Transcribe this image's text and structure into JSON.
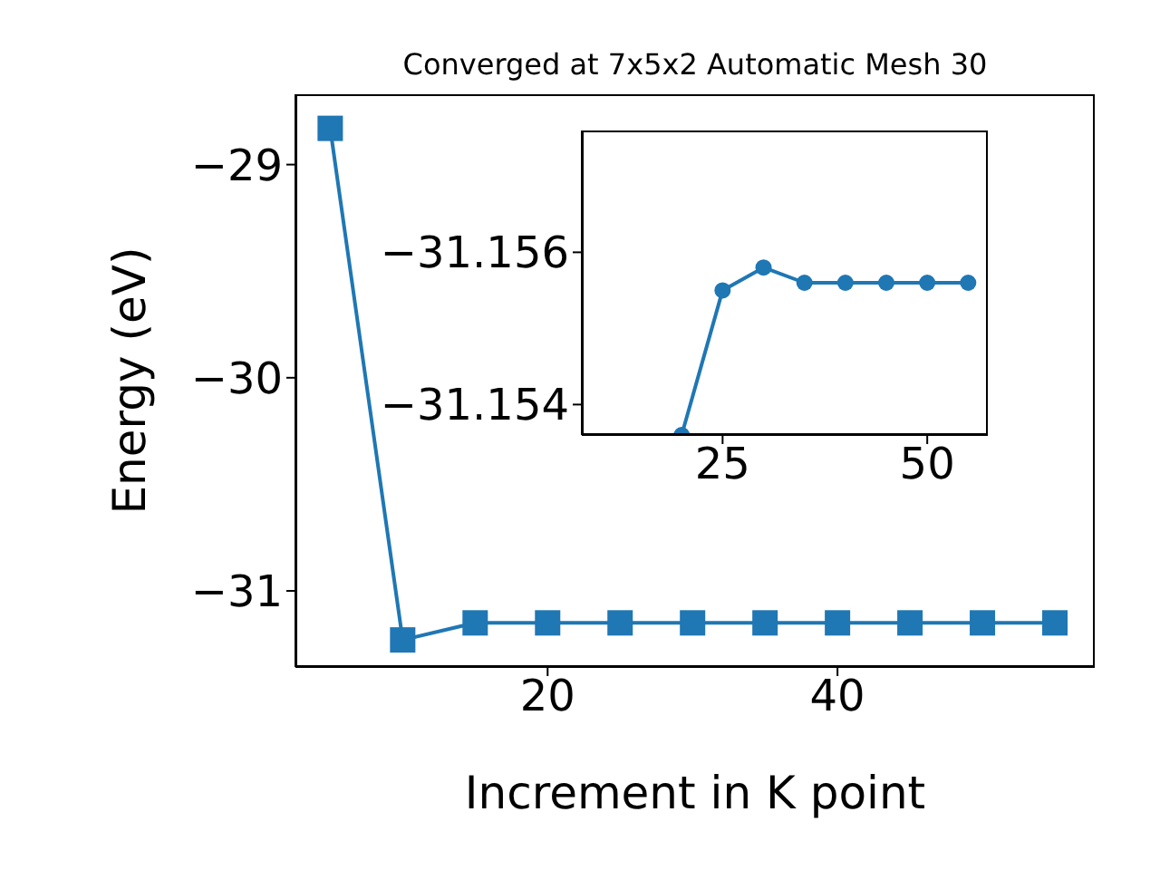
{
  "chart_data": [
    {
      "type": "line",
      "title": "Converged at 7x5x2 Automatic Mesh 30",
      "xlabel": "Increment in K point",
      "ylabel": "Energy (eV)",
      "x": [
        5,
        10,
        15,
        20,
        25,
        30,
        35,
        40,
        45,
        50,
        55
      ],
      "series": [
        {
          "color": "#1f77b4",
          "values": [
            -28.83,
            -31.23,
            -31.15,
            -31.15,
            -31.15,
            -31.15,
            -31.15,
            -31.15,
            -31.15,
            -31.15,
            -31.15
          ]
        }
      ],
      "xlim": [
        2.6,
        57.75
      ],
      "ylim": [
        -31.357,
        -28.67
      ],
      "xticks": [
        20,
        40
      ],
      "yticks": [
        -31,
        -30,
        -29
      ],
      "marker": "square",
      "line_style": "solid",
      "grid": false,
      "legend": false
    },
    {
      "type": "line",
      "x": [
        20,
        25,
        30,
        35,
        40,
        45,
        50,
        55
      ],
      "series": [
        {
          "color": "#1f77b4",
          "values": [
            -31.1536,
            -31.1555,
            -31.1558,
            -31.1556,
            -31.1556,
            -31.1556,
            -31.1556,
            -31.1556
          ]
        }
      ],
      "xlim": [
        7.8,
        57.4
      ],
      "ylim": [
        -31.1536,
        -31.1576
      ],
      "xticks": [
        25,
        50
      ],
      "yticks": [
        -31.156,
        -31.154
      ],
      "marker": "circle",
      "line_style": "solid",
      "grid": false,
      "legend": false
    }
  ]
}
